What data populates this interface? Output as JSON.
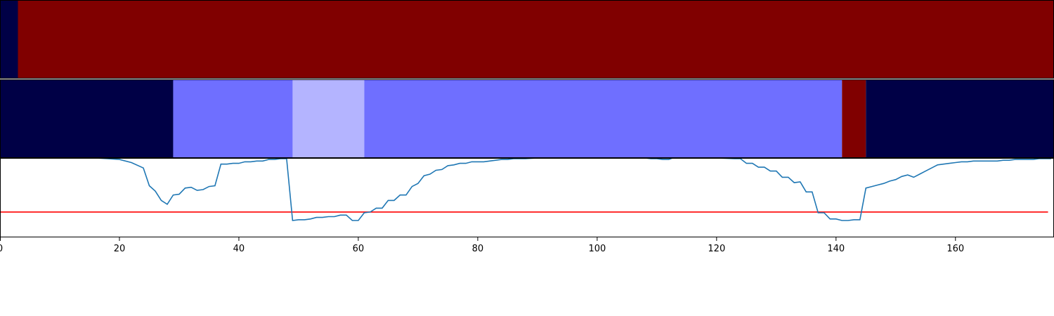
{
  "chart_data": {
    "type": "heatmap",
    "title": "",
    "xlabel": "",
    "ylabel": "",
    "xlim": [
      0,
      176.5
    ],
    "xticks": [
      0,
      20,
      40,
      60,
      80,
      100,
      120,
      140,
      160
    ],
    "grid": false,
    "legend": "none",
    "colors": {
      "dark_red": "#800000",
      "navy": "#000046",
      "medium_blue": "#6f6fff",
      "light_blue": "#b4b4ff",
      "line": "#1f77b4",
      "threshold": "#ff0000"
    },
    "rows": [
      {
        "segments": [
          {
            "start": 0,
            "end": 3,
            "color": "navy"
          },
          {
            "start": 3,
            "end": 176.5,
            "color": "dark_red"
          }
        ]
      },
      {
        "segments": [
          {
            "start": 0,
            "end": 29,
            "color": "navy"
          },
          {
            "start": 29,
            "end": 49,
            "color": "medium_blue"
          },
          {
            "start": 49,
            "end": 61,
            "color": "light_blue"
          },
          {
            "start": 61,
            "end": 141,
            "color": "medium_blue"
          },
          {
            "start": 141,
            "end": 145,
            "color": "dark_red"
          },
          {
            "start": 145,
            "end": 176.5,
            "color": "navy"
          }
        ]
      }
    ],
    "line_series": {
      "ylim": [
        0,
        1
      ],
      "threshold": 0.31,
      "points": [
        [
          0,
          1.02
        ],
        [
          16,
          1.01
        ],
        [
          18,
          1.0
        ],
        [
          20,
          0.99
        ],
        [
          22,
          0.95
        ],
        [
          24,
          0.88
        ],
        [
          25,
          0.65
        ],
        [
          26,
          0.58
        ],
        [
          27,
          0.46
        ],
        [
          28,
          0.41
        ],
        [
          29,
          0.53
        ],
        [
          30,
          0.54
        ],
        [
          31,
          0.62
        ],
        [
          32,
          0.63
        ],
        [
          33,
          0.59
        ],
        [
          34,
          0.6
        ],
        [
          35,
          0.64
        ],
        [
          36,
          0.65
        ],
        [
          37,
          0.93
        ],
        [
          38,
          0.93
        ],
        [
          39,
          0.94
        ],
        [
          40,
          0.94
        ],
        [
          41,
          0.96
        ],
        [
          42,
          0.96
        ],
        [
          43,
          0.97
        ],
        [
          44,
          0.97
        ],
        [
          45,
          0.99
        ],
        [
          46,
          0.99
        ],
        [
          47,
          1.0
        ],
        [
          48,
          1.0
        ],
        [
          49,
          0.2
        ],
        [
          50,
          0.21
        ],
        [
          51,
          0.21
        ],
        [
          52,
          0.22
        ],
        [
          53,
          0.24
        ],
        [
          54,
          0.24
        ],
        [
          55,
          0.25
        ],
        [
          56,
          0.25
        ],
        [
          57,
          0.27
        ],
        [
          58,
          0.27
        ],
        [
          59,
          0.2
        ],
        [
          60,
          0.2
        ],
        [
          61,
          0.3
        ],
        [
          62,
          0.31
        ],
        [
          63,
          0.36
        ],
        [
          64,
          0.36
        ],
        [
          65,
          0.46
        ],
        [
          66,
          0.46
        ],
        [
          67,
          0.53
        ],
        [
          68,
          0.53
        ],
        [
          69,
          0.64
        ],
        [
          70,
          0.68
        ],
        [
          71,
          0.78
        ],
        [
          72,
          0.8
        ],
        [
          73,
          0.85
        ],
        [
          74,
          0.86
        ],
        [
          75,
          0.91
        ],
        [
          76,
          0.92
        ],
        [
          77,
          0.94
        ],
        [
          78,
          0.94
        ],
        [
          79,
          0.96
        ],
        [
          80,
          0.96
        ],
        [
          81,
          0.96
        ],
        [
          82,
          0.97
        ],
        [
          83,
          0.98
        ],
        [
          84,
          0.99
        ],
        [
          85,
          0.99
        ],
        [
          86,
          1.0
        ],
        [
          87,
          1.0
        ],
        [
          88,
          1.0
        ],
        [
          90,
          1.01
        ],
        [
          95,
          1.01
        ],
        [
          100,
          1.01
        ],
        [
          105,
          1.01
        ],
        [
          108,
          1.01
        ],
        [
          109,
          1.0
        ],
        [
          110,
          1.0
        ],
        [
          111,
          0.99
        ],
        [
          112,
          0.99
        ],
        [
          113,
          1.02
        ],
        [
          115,
          1.01
        ],
        [
          120,
          1.01
        ],
        [
          123,
          1.0
        ],
        [
          124,
          1.0
        ],
        [
          125,
          0.94
        ],
        [
          126,
          0.94
        ],
        [
          127,
          0.89
        ],
        [
          128,
          0.89
        ],
        [
          129,
          0.84
        ],
        [
          130,
          0.84
        ],
        [
          131,
          0.76
        ],
        [
          132,
          0.76
        ],
        [
          133,
          0.69
        ],
        [
          134,
          0.7
        ],
        [
          135,
          0.57
        ],
        [
          136,
          0.57
        ],
        [
          137,
          0.3
        ],
        [
          138,
          0.3
        ],
        [
          139,
          0.22
        ],
        [
          140,
          0.22
        ],
        [
          141,
          0.2
        ],
        [
          142,
          0.2
        ],
        [
          143,
          0.21
        ],
        [
          144,
          0.21
        ],
        [
          145,
          0.62
        ],
        [
          146,
          0.64
        ],
        [
          147,
          0.66
        ],
        [
          148,
          0.68
        ],
        [
          149,
          0.71
        ],
        [
          150,
          0.73
        ],
        [
          151,
          0.77
        ],
        [
          152,
          0.79
        ],
        [
          153,
          0.76
        ],
        [
          154,
          0.8
        ],
        [
          155,
          0.84
        ],
        [
          156,
          0.88
        ],
        [
          157,
          0.92
        ],
        [
          158,
          0.93
        ],
        [
          159,
          0.94
        ],
        [
          160,
          0.95
        ],
        [
          161,
          0.96
        ],
        [
          162,
          0.96
        ],
        [
          163,
          0.97
        ],
        [
          164,
          0.97
        ],
        [
          165,
          0.97
        ],
        [
          166,
          0.97
        ],
        [
          167,
          0.97
        ],
        [
          168,
          0.98
        ],
        [
          169,
          0.98
        ],
        [
          170,
          0.99
        ],
        [
          171,
          0.99
        ],
        [
          172,
          0.99
        ],
        [
          173,
          0.99
        ],
        [
          174,
          1.0
        ],
        [
          175,
          1.0
        ],
        [
          176,
          1.0
        ]
      ]
    }
  }
}
